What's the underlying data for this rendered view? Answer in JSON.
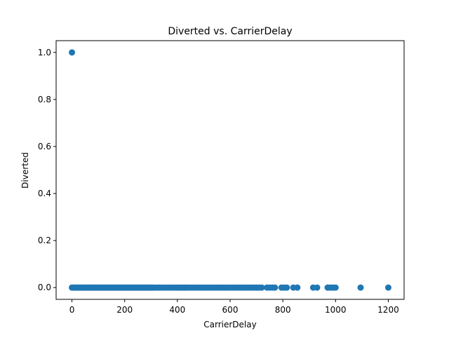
{
  "chart_data": {
    "type": "scatter",
    "title": "Diverted vs. CarrierDelay",
    "xlabel": "CarrierDelay",
    "ylabel": "Diverted",
    "xlim": [
      -60,
      1260
    ],
    "ylim": [
      -0.05,
      1.05
    ],
    "xticks": [
      0,
      200,
      400,
      600,
      800,
      1000,
      1200
    ],
    "yticks": [
      0.0,
      0.2,
      0.4,
      0.6,
      0.8,
      1.0
    ],
    "xtick_labels": [
      "0",
      "200",
      "400",
      "600",
      "800",
      "1000",
      "1200"
    ],
    "ytick_labels": [
      "0.0",
      "0.2",
      "0.4",
      "0.6",
      "0.8",
      "1.0"
    ],
    "grid": false,
    "series": [
      {
        "color": "#1f77b4",
        "points": [
          [
            0,
            1.0
          ],
          [
            0,
            0
          ],
          [
            5,
            0
          ],
          [
            10,
            0
          ],
          [
            15,
            0
          ],
          [
            20,
            0
          ],
          [
            25,
            0
          ],
          [
            30,
            0
          ],
          [
            35,
            0
          ],
          [
            40,
            0
          ],
          [
            45,
            0
          ],
          [
            50,
            0
          ],
          [
            55,
            0
          ],
          [
            60,
            0
          ],
          [
            65,
            0
          ],
          [
            70,
            0
          ],
          [
            75,
            0
          ],
          [
            80,
            0
          ],
          [
            85,
            0
          ],
          [
            90,
            0
          ],
          [
            95,
            0
          ],
          [
            100,
            0
          ],
          [
            105,
            0
          ],
          [
            110,
            0
          ],
          [
            115,
            0
          ],
          [
            120,
            0
          ],
          [
            125,
            0
          ],
          [
            130,
            0
          ],
          [
            135,
            0
          ],
          [
            140,
            0
          ],
          [
            145,
            0
          ],
          [
            150,
            0
          ],
          [
            155,
            0
          ],
          [
            160,
            0
          ],
          [
            165,
            0
          ],
          [
            170,
            0
          ],
          [
            175,
            0
          ],
          [
            180,
            0
          ],
          [
            185,
            0
          ],
          [
            190,
            0
          ],
          [
            195,
            0
          ],
          [
            200,
            0
          ],
          [
            205,
            0
          ],
          [
            210,
            0
          ],
          [
            215,
            0
          ],
          [
            220,
            0
          ],
          [
            225,
            0
          ],
          [
            230,
            0
          ],
          [
            235,
            0
          ],
          [
            240,
            0
          ],
          [
            245,
            0
          ],
          [
            250,
            0
          ],
          [
            255,
            0
          ],
          [
            260,
            0
          ],
          [
            265,
            0
          ],
          [
            270,
            0
          ],
          [
            275,
            0
          ],
          [
            280,
            0
          ],
          [
            285,
            0
          ],
          [
            290,
            0
          ],
          [
            295,
            0
          ],
          [
            300,
            0
          ],
          [
            305,
            0
          ],
          [
            310,
            0
          ],
          [
            320,
            0
          ],
          [
            330,
            0
          ],
          [
            340,
            0
          ],
          [
            350,
            0
          ],
          [
            360,
            0
          ],
          [
            370,
            0
          ],
          [
            380,
            0
          ],
          [
            390,
            0
          ],
          [
            400,
            0
          ],
          [
            410,
            0
          ],
          [
            420,
            0
          ],
          [
            425,
            0
          ],
          [
            430,
            0
          ],
          [
            440,
            0
          ],
          [
            450,
            0
          ],
          [
            460,
            0
          ],
          [
            470,
            0
          ],
          [
            480,
            0
          ],
          [
            490,
            0
          ],
          [
            500,
            0
          ],
          [
            510,
            0
          ],
          [
            520,
            0
          ],
          [
            530,
            0
          ],
          [
            540,
            0
          ],
          [
            550,
            0
          ],
          [
            560,
            0
          ],
          [
            570,
            0
          ],
          [
            580,
            0
          ],
          [
            590,
            0
          ],
          [
            600,
            0
          ],
          [
            610,
            0
          ],
          [
            620,
            0
          ],
          [
            630,
            0
          ],
          [
            640,
            0
          ],
          [
            650,
            0
          ],
          [
            660,
            0
          ],
          [
            670,
            0
          ],
          [
            680,
            0
          ],
          [
            690,
            0
          ],
          [
            700,
            0
          ],
          [
            710,
            0
          ],
          [
            720,
            0
          ],
          [
            740,
            0
          ],
          [
            750,
            0
          ],
          [
            760,
            0
          ],
          [
            770,
            0
          ],
          [
            795,
            0
          ],
          [
            805,
            0
          ],
          [
            815,
            0
          ],
          [
            840,
            0
          ],
          [
            855,
            0
          ],
          [
            915,
            0
          ],
          [
            930,
            0
          ],
          [
            970,
            0
          ],
          [
            980,
            0
          ],
          [
            990,
            0
          ],
          [
            1000,
            0
          ],
          [
            1095,
            0
          ],
          [
            1200,
            0
          ]
        ]
      }
    ]
  }
}
